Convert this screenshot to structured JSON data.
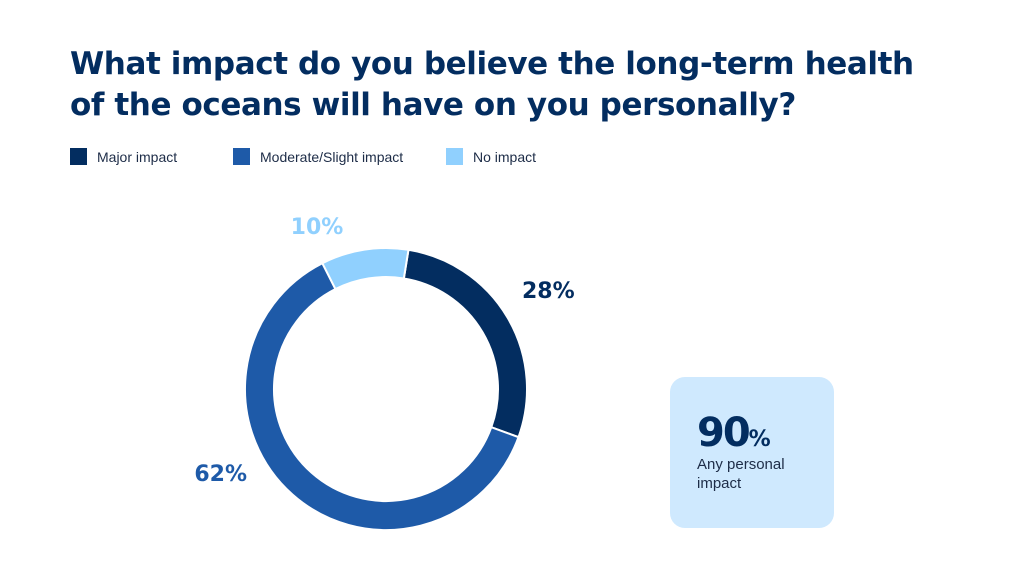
{
  "title_lines": [
    "What impact do you believe the long-term health",
    "of the oceans will have on you personally?"
  ],
  "chart_data": {
    "type": "pie",
    "donut": true,
    "title": "What impact do you believe the long-term health of the oceans will have on you personally?",
    "legend_position": "top-left",
    "unit": "%",
    "slices": [
      {
        "label": "Major impact",
        "value": 28,
        "value_label": "28%",
        "color": "#032d60"
      },
      {
        "label": "Moderate/Slight impact",
        "value": 62,
        "value_label": "62%",
        "color": "#1e5aa8"
      },
      {
        "label": "No impact",
        "value": 10,
        "value_label": "10%",
        "color": "#90d0fe"
      }
    ]
  },
  "callout": {
    "value": "90",
    "unit": "%",
    "label": "Any personal impact",
    "background_color": "#cfe9fe"
  }
}
